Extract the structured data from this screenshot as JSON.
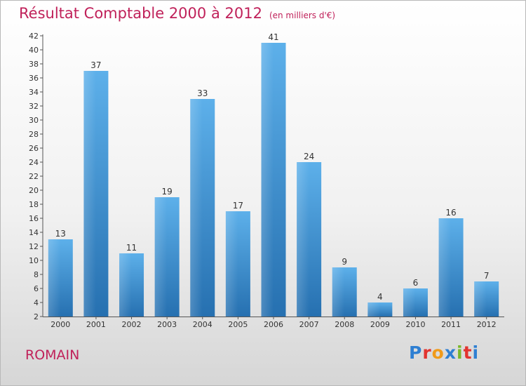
{
  "header": {
    "title": "Résultat Comptable 2000 à 2012",
    "unit_note": "(en milliers d'€)"
  },
  "footer": {
    "commune": "ROMAIN",
    "brand": "Proxiti"
  },
  "colors": {
    "title": "#c0215a",
    "bar_top": "#5db0ea",
    "bar_bottom": "#2670b0",
    "axis": "#555555"
  },
  "chart_data": {
    "type": "bar",
    "title": "Résultat Comptable 2000 à 2012",
    "xlabel": "",
    "ylabel": "",
    "categories": [
      "2000",
      "2001",
      "2002",
      "2003",
      "2004",
      "2005",
      "2006",
      "2007",
      "2008",
      "2009",
      "2010",
      "2011",
      "2012"
    ],
    "values": [
      13,
      37,
      11,
      19,
      33,
      17,
      41,
      24,
      9,
      4,
      6,
      16,
      7
    ],
    "ylim": [
      2,
      42
    ],
    "yticks": [
      2,
      4,
      6,
      8,
      10,
      12,
      14,
      16,
      18,
      20,
      22,
      24,
      26,
      28,
      30,
      32,
      34,
      36,
      38,
      40,
      42
    ],
    "grid": false,
    "data_labels": true
  }
}
